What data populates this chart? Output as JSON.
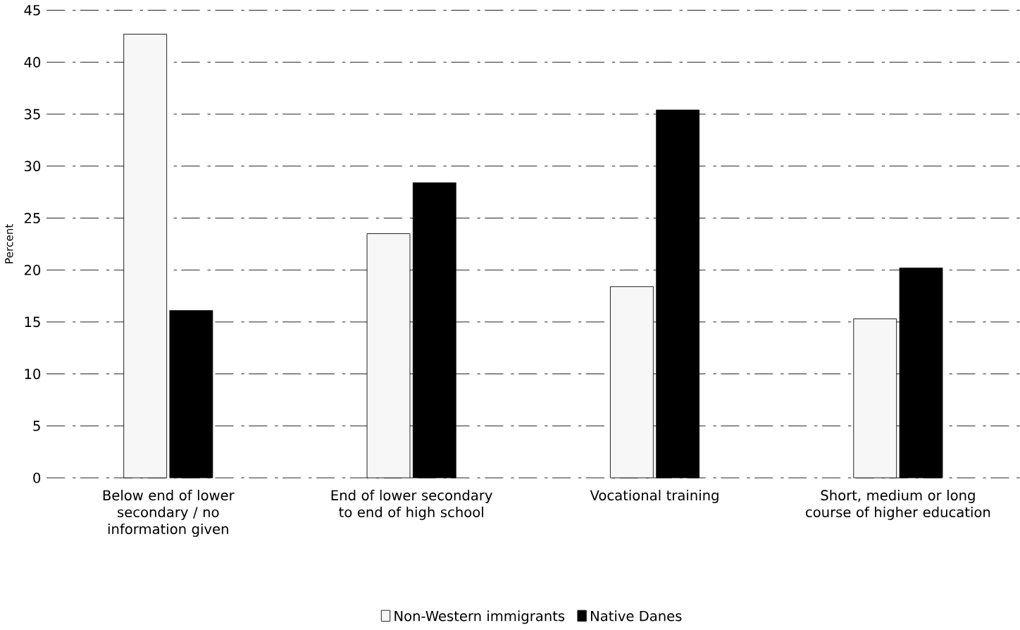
{
  "chart_data": {
    "type": "bar",
    "ylabel": "Percent",
    "categories": [
      "Below end of lower secondary / no information given",
      "End of lower secondary to end of high school",
      "Vocational training",
      "Short, medium or long course of higher education"
    ],
    "series": [
      {
        "name": "Non-Western immigrants",
        "color": "#f7f7f7",
        "values": [
          42.7,
          23.5,
          18.4,
          15.3
        ]
      },
      {
        "name": "Native Danes",
        "color": "#000000",
        "values": [
          16.1,
          28.4,
          35.4,
          20.2
        ]
      }
    ],
    "ylim": [
      0,
      45
    ],
    "yticks": [
      0,
      5,
      10,
      15,
      20,
      25,
      30,
      35,
      40,
      45
    ],
    "grid": "y",
    "legend": "bottom"
  }
}
